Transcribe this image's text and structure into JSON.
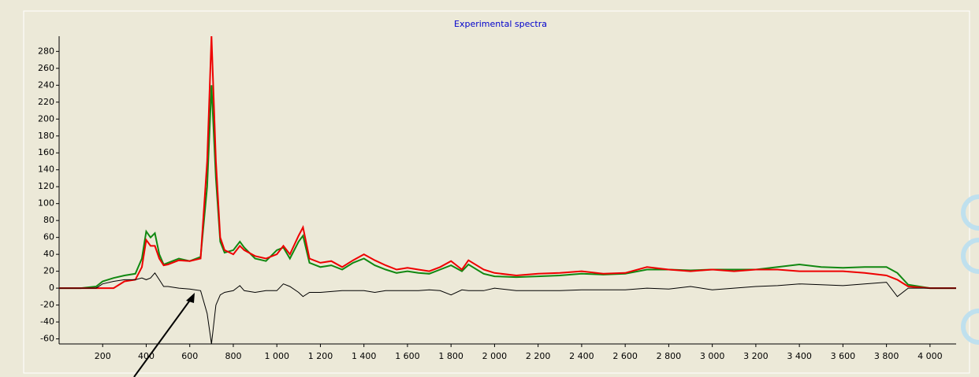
{
  "chart_data": {
    "type": "line",
    "title": "Experimental spectra",
    "x": [
      0,
      100,
      170,
      200,
      250,
      300,
      350,
      380,
      400,
      420,
      440,
      460,
      480,
      500,
      550,
      600,
      650,
      680,
      700,
      720,
      740,
      760,
      800,
      830,
      850,
      900,
      950,
      1000,
      1030,
      1060,
      1100,
      1120,
      1150,
      1200,
      1250,
      1300,
      1350,
      1400,
      1450,
      1500,
      1550,
      1600,
      1650,
      1700,
      1750,
      1800,
      1850,
      1880,
      1950,
      2000,
      2100,
      2200,
      2300,
      2400,
      2500,
      2600,
      2700,
      2800,
      2900,
      3000,
      3100,
      3200,
      3300,
      3400,
      3500,
      3600,
      3700,
      3800,
      3850,
      3900,
      4000,
      4120
    ],
    "series": [
      {
        "color": "#ee0000",
        "values": [
          0,
          0,
          0,
          0,
          0,
          8,
          10,
          25,
          57,
          50,
          50,
          35,
          27,
          28,
          33,
          32,
          35,
          150,
          298,
          150,
          60,
          45,
          40,
          50,
          45,
          38,
          35,
          40,
          50,
          40,
          62,
          72,
          35,
          30,
          32,
          25,
          33,
          40,
          33,
          27,
          22,
          24,
          22,
          20,
          25,
          32,
          22,
          33,
          22,
          18,
          15,
          17,
          18,
          20,
          17,
          18,
          25,
          22,
          20,
          22,
          20,
          22,
          22,
          20,
          20,
          20,
          18,
          15,
          10,
          2,
          0,
          0
        ]
      },
      {
        "color": "#118811",
        "values": [
          0,
          0,
          2,
          8,
          12,
          15,
          17,
          35,
          67,
          60,
          65,
          40,
          28,
          30,
          35,
          32,
          37,
          120,
          240,
          130,
          55,
          42,
          45,
          55,
          48,
          35,
          32,
          45,
          48,
          35,
          55,
          62,
          30,
          25,
          27,
          22,
          30,
          35,
          27,
          22,
          18,
          20,
          18,
          17,
          22,
          27,
          20,
          28,
          17,
          14,
          13,
          14,
          15,
          17,
          16,
          17,
          22,
          22,
          21,
          22,
          22,
          22,
          25,
          28,
          25,
          24,
          25,
          25,
          18,
          4,
          0,
          0
        ]
      },
      {
        "color": "#000000",
        "values": [
          0,
          0,
          0,
          5,
          8,
          10,
          10,
          12,
          10,
          12,
          18,
          10,
          2,
          2,
          0,
          -1,
          -3,
          -30,
          -66,
          -20,
          -8,
          -5,
          -3,
          3,
          -3,
          -5,
          -3,
          -3,
          5,
          2,
          -5,
          -10,
          -5,
          -5,
          -4,
          -3,
          -3,
          -3,
          -5,
          -3,
          -3,
          -3,
          -3,
          -2,
          -3,
          -8,
          -2,
          -3,
          -3,
          0,
          -3,
          -3,
          -3,
          -2,
          -2,
          -2,
          0,
          -1,
          2,
          -2,
          0,
          2,
          3,
          5,
          4,
          3,
          5,
          7,
          -10,
          0,
          0,
          0
        ]
      }
    ],
    "xlim": [
      0,
      4120
    ],
    "ylim": [
      -66,
      298
    ],
    "xticks": [
      200,
      400,
      600,
      800,
      {
        "value": 1000,
        "label": "1 000"
      },
      {
        "value": 1200,
        "label": "1 200"
      },
      {
        "value": 1400,
        "label": "1 400"
      },
      {
        "value": 1600,
        "label": "1 600"
      },
      {
        "value": 1800,
        "label": "1 800"
      },
      {
        "value": 2000,
        "label": "2 000"
      },
      {
        "value": 2200,
        "label": "2 200"
      },
      {
        "value": 2400,
        "label": "2 400"
      },
      {
        "value": 2600,
        "label": "2 600"
      },
      {
        "value": 2800,
        "label": "2 800"
      },
      {
        "value": 3000,
        "label": "3 000"
      },
      {
        "value": 3200,
        "label": "3 200"
      },
      {
        "value": 3400,
        "label": "3 400"
      },
      {
        "value": 3600,
        "label": "3 600"
      },
      {
        "value": 3800,
        "label": "3 800"
      },
      {
        "value": 4000,
        "label": "4 000"
      }
    ],
    "yticks": [
      -60,
      -40,
      -20,
      0,
      20,
      40,
      60,
      80,
      100,
      120,
      140,
      160,
      180,
      200,
      220,
      240,
      260,
      280
    ]
  }
}
